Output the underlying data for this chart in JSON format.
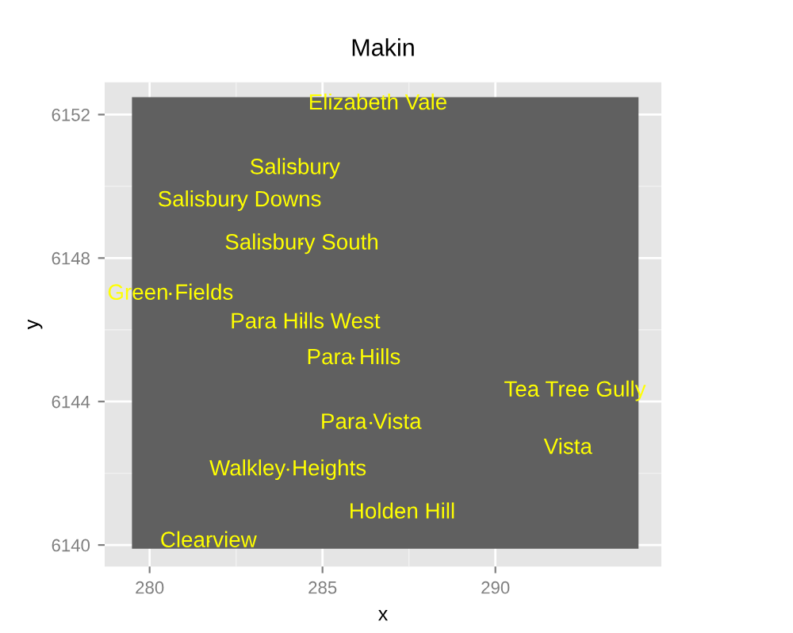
{
  "chart_data": {
    "type": "scatter",
    "title": "Makin",
    "xlabel": "x",
    "ylabel": "y",
    "x": [
      286.6,
      284.2,
      282.6,
      284.4,
      280.6,
      284.5,
      285.9,
      292.3,
      286.4,
      292.1,
      284.0,
      287.3,
      281.7
    ],
    "values": [
      6152.3,
      6150.5,
      6149.6,
      6148.4,
      6147.0,
      6146.2,
      6145.2,
      6144.3,
      6143.4,
      6142.7,
      6142.1,
      6140.9,
      6140.1
    ],
    "value_labels": [
      "Elizabeth Vale",
      "Salisbury",
      "Salisbury Downs",
      "Salisbury South",
      "Green Fields",
      "Para Hills West",
      "Para Hills",
      "Tea Tree Gully",
      "Para Vista",
      "Vista",
      "Walkley Heights",
      "Holden Hill",
      "Clearview"
    ],
    "color": "#ffff00",
    "marker": "none",
    "xlim": [
      278.7,
      294.8
    ],
    "ylim": [
      6139.4,
      6152.9
    ],
    "xticks": [
      280,
      285,
      290
    ],
    "yticks": [
      6140,
      6144,
      6148,
      6152
    ],
    "grid": true
  }
}
